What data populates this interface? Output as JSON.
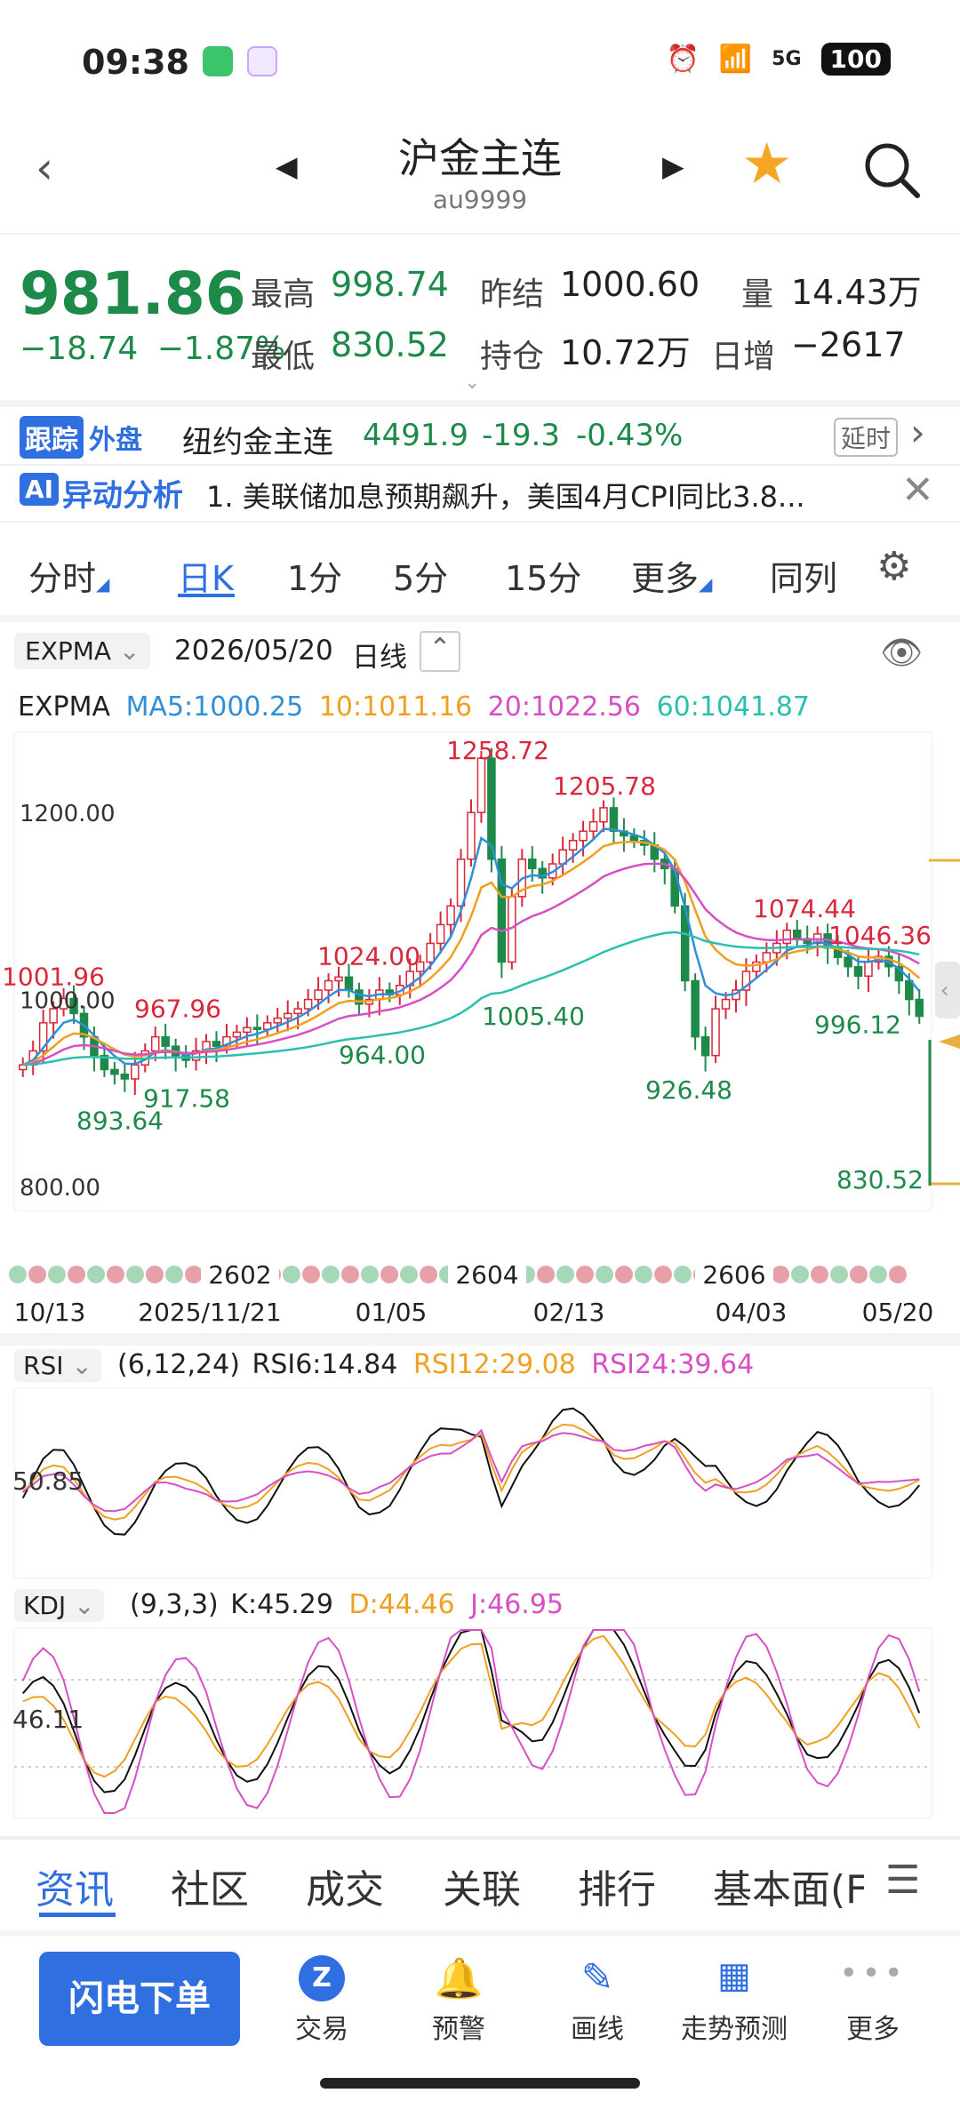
{
  "status": {
    "time": "09:38",
    "network": "5G",
    "battery": "100"
  },
  "header": {
    "title": "沪金主连",
    "subtitle": "au9999"
  },
  "quote": {
    "price": "981.86",
    "change": "−18.74",
    "change_pct": "−1.87%",
    "high_label": "最高",
    "high": "998.74",
    "low_label": "最低",
    "low": "830.52",
    "prev_settle_label": "昨结",
    "prev_settle": "1000.60",
    "open_interest_label": "持仓",
    "open_interest": "10.72万",
    "volume_label": "量",
    "volume": "14.43万",
    "daily_inc_label": "日增",
    "daily_inc": "−2617"
  },
  "foreign": {
    "tag1": "跟踪",
    "tag2": "外盘",
    "name": "纽约金主连",
    "price": "4491.9",
    "change": "-19.3",
    "pct": "-0.43%",
    "delay": "延时"
  },
  "alert": {
    "tag": "AI",
    "title": "异动分析",
    "text": "1. 美联储加息预期飙升，美国4月CPI同比3.8..."
  },
  "tabs": [
    "分时",
    "日K",
    "1分",
    "5分",
    "15分",
    "更多",
    "同列"
  ],
  "chart_header": {
    "indicator": "EXPMA",
    "date": "2026/05/20",
    "period": "日线"
  },
  "legend_expma": {
    "name": "EXPMA",
    "ma5": "MA5:1000.25",
    "ma10": "10:1011.16",
    "ma20": "20:1022.56",
    "ma60": "60:1041.87",
    "c5": "#2f8fd8",
    "c10": "#f0a020",
    "c20": "#d74fc4",
    "c60": "#2bbfb0"
  },
  "chart_data": {
    "type": "line",
    "y_ticks": [
      "1200.00",
      "1000.00",
      "800.00"
    ],
    "ylim": [
      780,
      1280
    ],
    "x_dates": [
      "10/13",
      "2025/11/21",
      "01/05",
      "02/13",
      "04/03",
      "05/20"
    ],
    "contracts": [
      "2602",
      "2604",
      "2606"
    ],
    "annotations": [
      {
        "label": "1001.96",
        "value": 1001.96,
        "kind": "high"
      },
      {
        "label": "967.96",
        "value": 967.96,
        "kind": "high"
      },
      {
        "label": "1024.00",
        "value": 1024.0,
        "kind": "high"
      },
      {
        "label": "1258.72",
        "value": 1258.72,
        "kind": "high"
      },
      {
        "label": "1205.78",
        "value": 1205.78,
        "kind": "high"
      },
      {
        "label": "1074.44",
        "value": 1074.44,
        "kind": "high"
      },
      {
        "label": "1046.36",
        "value": 1046.36,
        "kind": "high"
      },
      {
        "label": "893.64",
        "value": 893.64,
        "kind": "low"
      },
      {
        "label": "917.58",
        "value": 917.58,
        "kind": "low"
      },
      {
        "label": "964.00",
        "value": 964.0,
        "kind": "low"
      },
      {
        "label": "1005.40",
        "value": 1005.4,
        "kind": "low"
      },
      {
        "label": "926.48",
        "value": 926.48,
        "kind": "low"
      },
      {
        "label": "996.12",
        "value": 996.12,
        "kind": "low"
      },
      {
        "label": "830.52",
        "value": 830.52,
        "kind": "low"
      }
    ],
    "closes": [
      930,
      945,
      975,
      990,
      1001,
      985,
      960,
      940,
      925,
      920,
      915,
      930,
      945,
      960,
      950,
      940,
      935,
      945,
      955,
      950,
      960,
      965,
      970,
      968,
      975,
      980,
      985,
      990,
      1000,
      1010,
      1020,
      1024,
      1010,
      995,
      1000,
      1010,
      1005,
      1015,
      1030,
      1040,
      1060,
      1080,
      1100,
      1150,
      1200,
      1258,
      1150,
      1040,
      1110,
      1150,
      1140,
      1130,
      1145,
      1160,
      1170,
      1180,
      1190,
      1205,
      1180,
      1175,
      1170,
      1165,
      1150,
      1140,
      1100,
      1020,
      960,
      940,
      990,
      1000,
      1010,
      1030,
      1040,
      1050,
      1060,
      1074,
      1065,
      1060,
      1070,
      1055,
      1045,
      1035,
      1025,
      1040,
      1046,
      1035,
      1020,
      1000,
      982
    ]
  },
  "rsi": {
    "name": "RSI",
    "params": "(6,12,24)",
    "rsi6": "RSI6:14.84",
    "rsi12": "RSI12:29.08",
    "rsi24": "RSI24:39.64",
    "level": "50.85"
  },
  "kdj": {
    "name": "KDJ",
    "params": "(9,3,3)",
    "k": "K:45.29",
    "d": "D:44.46",
    "j": "J:46.95",
    "level": "46.11"
  },
  "bottom_tabs": [
    "资讯",
    "社区",
    "成交",
    "关联",
    "排行",
    "基本面(F"
  ],
  "bottom_nav": {
    "order": "闪电下单",
    "trade": "交易",
    "alert": "预警",
    "draw": "画线",
    "forecast": "走势预测",
    "more": "更多"
  }
}
